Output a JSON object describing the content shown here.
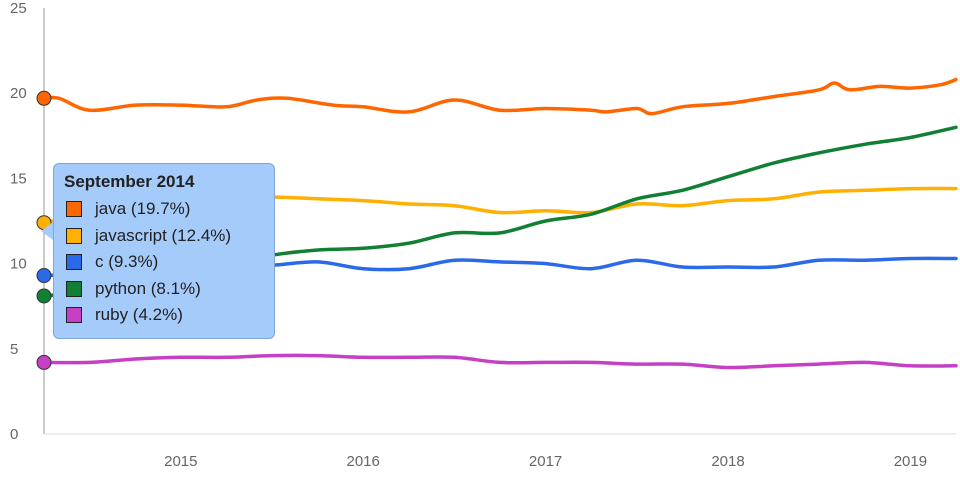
{
  "chart_data": {
    "type": "line",
    "x_ticks": [
      "2015",
      "2016",
      "2017",
      "2018",
      "2019"
    ],
    "x_range": [
      "2014-09",
      "2019-09"
    ],
    "y_ticks": [
      0,
      5,
      10,
      15,
      20,
      25
    ],
    "ylim": [
      0,
      25
    ],
    "grid": false,
    "series": [
      {
        "name": "java",
        "color": "#ff6600",
        "points": [
          [
            "2014-09",
            19.7
          ],
          [
            "2014-10",
            19.7
          ],
          [
            "2014-12",
            19.0
          ],
          [
            "2015-03",
            19.3
          ],
          [
            "2015-06",
            19.3
          ],
          [
            "2015-09",
            19.2
          ],
          [
            "2015-11",
            19.6
          ],
          [
            "2016-01",
            19.7
          ],
          [
            "2016-04",
            19.3
          ],
          [
            "2016-06",
            19.2
          ],
          [
            "2016-09",
            18.9
          ],
          [
            "2016-12",
            19.6
          ],
          [
            "2017-03",
            19.0
          ],
          [
            "2017-06",
            19.1
          ],
          [
            "2017-09",
            19.0
          ],
          [
            "2017-10",
            18.9
          ],
          [
            "2017-12",
            19.1
          ],
          [
            "2018-01",
            18.8
          ],
          [
            "2018-03",
            19.2
          ],
          [
            "2018-06",
            19.4
          ],
          [
            "2018-09",
            19.8
          ],
          [
            "2018-12",
            20.2
          ],
          [
            "2019-01",
            20.6
          ],
          [
            "2019-02",
            20.2
          ],
          [
            "2019-04",
            20.4
          ],
          [
            "2019-06",
            20.3
          ],
          [
            "2019-08",
            20.5
          ],
          [
            "2019-09",
            20.8
          ]
        ]
      },
      {
        "name": "javascript",
        "color": "#ffb000",
        "points": [
          [
            "2014-09",
            12.4
          ],
          [
            "2014-12",
            12.9
          ],
          [
            "2015-03",
            13.3
          ],
          [
            "2015-06",
            13.6
          ],
          [
            "2015-09",
            13.7
          ],
          [
            "2015-12",
            13.9
          ],
          [
            "2016-03",
            13.8
          ],
          [
            "2016-06",
            13.7
          ],
          [
            "2016-09",
            13.5
          ],
          [
            "2016-12",
            13.4
          ],
          [
            "2017-03",
            13.0
          ],
          [
            "2017-06",
            13.1
          ],
          [
            "2017-09",
            13.0
          ],
          [
            "2017-12",
            13.5
          ],
          [
            "2018-03",
            13.4
          ],
          [
            "2018-06",
            13.7
          ],
          [
            "2018-09",
            13.8
          ],
          [
            "2018-12",
            14.2
          ],
          [
            "2019-03",
            14.3
          ],
          [
            "2019-06",
            14.4
          ],
          [
            "2019-09",
            14.4
          ]
        ]
      },
      {
        "name": "c",
        "color": "#2a6ae8",
        "points": [
          [
            "2014-09",
            9.3
          ],
          [
            "2014-12",
            9.4
          ],
          [
            "2015-03",
            9.5
          ],
          [
            "2015-06",
            9.7
          ],
          [
            "2015-09",
            9.8
          ],
          [
            "2015-12",
            9.9
          ],
          [
            "2016-03",
            10.1
          ],
          [
            "2016-06",
            9.7
          ],
          [
            "2016-09",
            9.7
          ],
          [
            "2016-12",
            10.2
          ],
          [
            "2017-03",
            10.1
          ],
          [
            "2017-06",
            10.0
          ],
          [
            "2017-09",
            9.7
          ],
          [
            "2017-12",
            10.2
          ],
          [
            "2018-03",
            9.8
          ],
          [
            "2018-06",
            9.8
          ],
          [
            "2018-09",
            9.8
          ],
          [
            "2018-12",
            10.2
          ],
          [
            "2019-03",
            10.2
          ],
          [
            "2019-06",
            10.3
          ],
          [
            "2019-09",
            10.3
          ]
        ]
      },
      {
        "name": "python",
        "color": "#118035",
        "points": [
          [
            "2014-09",
            8.1
          ],
          [
            "2014-12",
            8.4
          ],
          [
            "2015-03",
            9.0
          ],
          [
            "2015-06",
            9.5
          ],
          [
            "2015-09",
            10.0
          ],
          [
            "2015-12",
            10.5
          ],
          [
            "2016-03",
            10.8
          ],
          [
            "2016-06",
            10.9
          ],
          [
            "2016-09",
            11.2
          ],
          [
            "2016-12",
            11.8
          ],
          [
            "2017-03",
            11.8
          ],
          [
            "2017-06",
            12.5
          ],
          [
            "2017-09",
            12.9
          ],
          [
            "2017-12",
            13.8
          ],
          [
            "2018-03",
            14.3
          ],
          [
            "2018-06",
            15.1
          ],
          [
            "2018-09",
            15.9
          ],
          [
            "2018-12",
            16.5
          ],
          [
            "2019-03",
            17.0
          ],
          [
            "2019-06",
            17.4
          ],
          [
            "2019-09",
            18.0
          ]
        ]
      },
      {
        "name": "ruby",
        "color": "#c640c6",
        "points": [
          [
            "2014-09",
            4.2
          ],
          [
            "2014-12",
            4.2
          ],
          [
            "2015-03",
            4.4
          ],
          [
            "2015-06",
            4.5
          ],
          [
            "2015-09",
            4.5
          ],
          [
            "2015-12",
            4.6
          ],
          [
            "2016-03",
            4.6
          ],
          [
            "2016-06",
            4.5
          ],
          [
            "2016-09",
            4.5
          ],
          [
            "2016-12",
            4.5
          ],
          [
            "2017-03",
            4.2
          ],
          [
            "2017-06",
            4.2
          ],
          [
            "2017-09",
            4.2
          ],
          [
            "2017-12",
            4.1
          ],
          [
            "2018-03",
            4.1
          ],
          [
            "2018-06",
            3.9
          ],
          [
            "2018-09",
            4.0
          ],
          [
            "2018-12",
            4.1
          ],
          [
            "2019-03",
            4.2
          ],
          [
            "2019-06",
            4.0
          ],
          [
            "2019-09",
            4.0
          ]
        ]
      }
    ]
  },
  "tooltip": {
    "title": "September 2014",
    "items": [
      {
        "label": "java (19.7%)",
        "color": "#ff6600"
      },
      {
        "label": "javascript (12.4%)",
        "color": "#ffb000"
      },
      {
        "label": "c (9.3%)",
        "color": "#2a6ae8"
      },
      {
        "label": "python (8.1%)",
        "color": "#118035"
      },
      {
        "label": "ruby (4.2%)",
        "color": "#c640c6"
      }
    ]
  },
  "colors": {
    "axis": "#999999",
    "tick_text": "#666666",
    "tooltip_bg": "#a4cbfa"
  }
}
